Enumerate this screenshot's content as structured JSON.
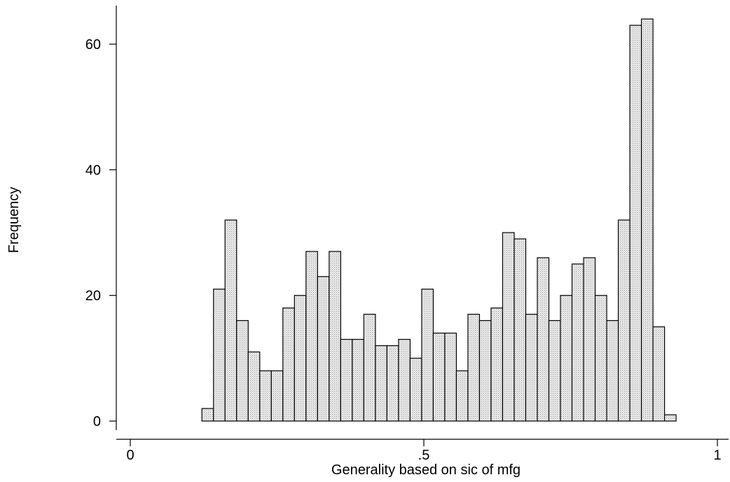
{
  "chart_data": {
    "type": "bar",
    "xlabel": "Generality based on sic of mfg",
    "ylabel": "Frequency",
    "xlim": [
      0,
      1
    ],
    "ylim": [
      0,
      66
    ],
    "x_ticks": [
      {
        "value": 0,
        "label": "0"
      },
      {
        "value": 0.5,
        "label": ".5"
      },
      {
        "value": 1,
        "label": "1"
      }
    ],
    "y_ticks": [
      {
        "value": 0,
        "label": "0"
      },
      {
        "value": 20,
        "label": "20"
      },
      {
        "value": 40,
        "label": "40"
      },
      {
        "value": 60,
        "label": "60"
      }
    ],
    "bin_start": 0.122,
    "bin_width": 0.0197,
    "values": [
      2,
      21,
      32,
      16,
      11,
      8,
      8,
      18,
      20,
      27,
      23,
      27,
      13,
      13,
      17,
      12,
      12,
      13,
      10,
      21,
      14,
      14,
      8,
      17,
      16,
      18,
      30,
      29,
      17,
      26,
      16,
      20,
      25,
      26,
      20,
      16,
      32,
      63,
      64,
      15,
      1
    ],
    "bar_fill": "#e6e6e6",
    "grid": false,
    "legend": "none"
  }
}
